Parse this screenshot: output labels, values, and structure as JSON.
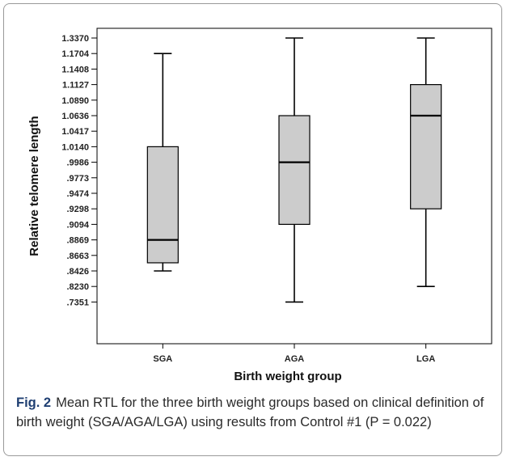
{
  "caption": {
    "label": "Fig. 2",
    "text": "Mean RTL for the three birth weight groups based on clinical definition of birth weight (SGA/AGA/LGA) using results from Control #1 (P = 0.022)"
  },
  "colors": {
    "box_fill": "#cccccc",
    "stroke": "#000000",
    "caption_label": "#1f3f72"
  },
  "chart_data": {
    "type": "box",
    "title": "",
    "xlabel": "Birth weight group",
    "ylabel": "Relative telomere length",
    "categories": [
      "SGA",
      "AGA",
      "LGA"
    ],
    "y_scale": "categorical-tick (labels evenly spaced, not linear)",
    "y_tick_labels": [
      "1.3370",
      "1.1704",
      "1.1408",
      "1.1127",
      "1.0890",
      "1.0636",
      "1.0417",
      "1.0140",
      ".9986",
      ".9773",
      ".9474",
      ".9298",
      ".9094",
      ".8869",
      ".8663",
      ".8426",
      ".8230",
      ".7351"
    ],
    "y_tick_values": [
      1.337,
      1.1704,
      1.1408,
      1.1127,
      1.089,
      1.0636,
      1.0417,
      1.014,
      0.9986,
      0.9773,
      0.9474,
      0.9298,
      0.9094,
      0.8869,
      0.8663,
      0.8426,
      0.823,
      0.7351
    ],
    "boxes": [
      {
        "category": "SGA",
        "whisker_low": 0.8426,
        "q1": 0.855,
        "median": 0.8869,
        "q3": 1.014,
        "whisker_high": 1.1704
      },
      {
        "category": "AGA",
        "whisker_low": 0.7351,
        "q1": 0.9094,
        "median": 0.9986,
        "q3": 1.0636,
        "whisker_high": 1.337
      },
      {
        "category": "LGA",
        "whisker_low": 0.823,
        "q1": 0.9298,
        "median": 1.0636,
        "q3": 1.1127,
        "whisker_high": 1.337
      }
    ],
    "grid": false,
    "legend": "none"
  }
}
